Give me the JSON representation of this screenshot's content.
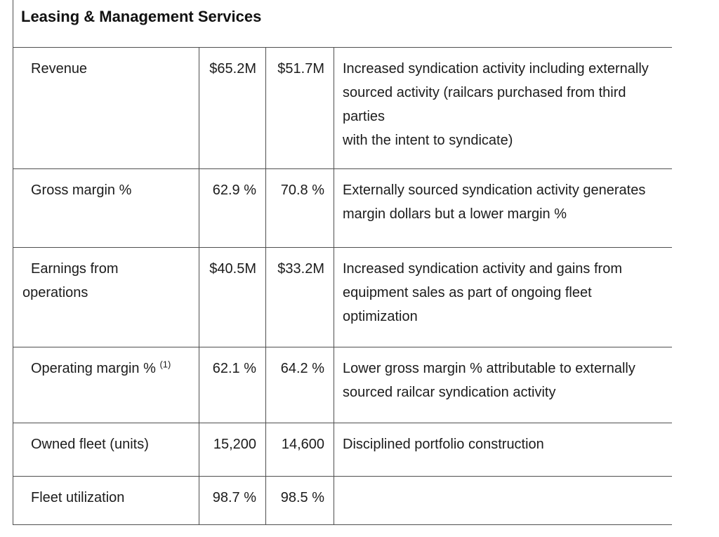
{
  "header": {
    "title": "Leasing & Management Services"
  },
  "colors": {
    "border": "#4f4f4f",
    "text": "#1c1c1c"
  },
  "table": {
    "rows": [
      {
        "label_lines": [
          "Revenue"
        ],
        "label_sup": "",
        "value_1": "$65.2M",
        "value_2": "$51.7M",
        "comment_lines": [
          "Increased syndication activity including externally",
          "sourced activity (railcars purchased from third",
          "parties",
          "with the intent to syndicate)"
        ]
      },
      {
        "label_lines": [
          "Gross margin %"
        ],
        "label_sup": "",
        "value_1": "62.9 %",
        "value_2": "70.8 %",
        "comment_lines": [
          "Externally sourced syndication activity generates",
          "margin dollars but a lower margin %"
        ]
      },
      {
        "label_lines": [
          "Earnings from",
          "operations"
        ],
        "label_sup": "",
        "value_1": "$40.5M",
        "value_2": "$33.2M",
        "comment_lines": [
          "Increased syndication activity and gains from",
          "equipment sales as part of ongoing fleet",
          "optimization"
        ]
      },
      {
        "label_lines": [
          "Operating margin %"
        ],
        "label_sup": "(1)",
        "value_1": "62.1 %",
        "value_2": "64.2 %",
        "comment_lines": [
          "Lower gross margin % attributable to externally",
          "sourced railcar syndication activity"
        ]
      },
      {
        "label_lines": [
          "Owned fleet (units)"
        ],
        "label_sup": "",
        "value_1": "15,200",
        "value_2": "14,600",
        "comment_lines": [
          "Disciplined portfolio construction"
        ]
      },
      {
        "label_lines": [
          "Fleet utilization"
        ],
        "label_sup": "",
        "value_1": "98.7 %",
        "value_2": "98.5 %",
        "comment_lines": []
      }
    ]
  }
}
